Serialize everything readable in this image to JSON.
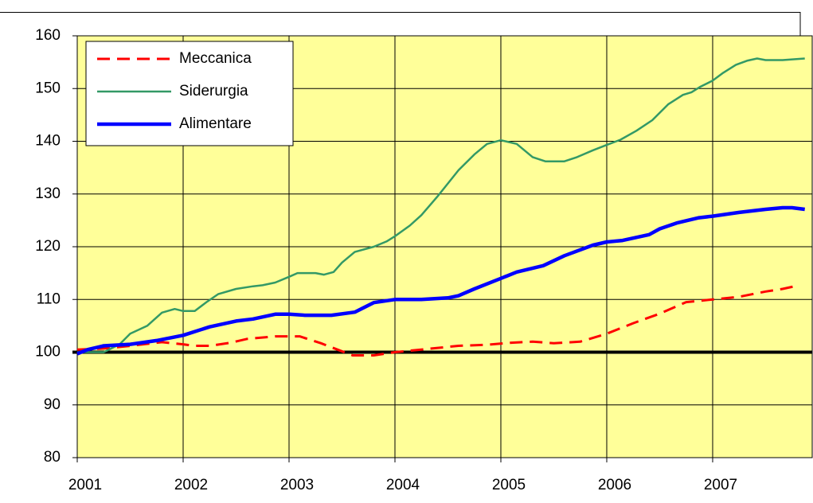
{
  "chart_data": {
    "type": "line",
    "xlim": [
      2001,
      2007.94
    ],
    "xticks": [
      2001,
      2002,
      2003,
      2004,
      2005,
      2006,
      2007
    ],
    "ylim": [
      80,
      160
    ],
    "yticks": [
      80,
      90,
      100,
      110,
      120,
      130,
      140,
      150,
      160
    ],
    "grid": true,
    "reference_line": 100,
    "legend": "upper left",
    "background": "#ffff99",
    "series": [
      {
        "name": "Meccanica",
        "color": "#ff0000",
        "style": "dashed",
        "x": [
          2001.0,
          2001.25,
          2001.5,
          2001.8,
          2002.0,
          2002.1,
          2002.25,
          2002.45,
          2002.6,
          2002.87,
          2003.1,
          2003.3,
          2003.6,
          2003.8,
          2004.0,
          2004.25,
          2004.6,
          2004.87,
          2005.1,
          2005.3,
          2005.5,
          2005.75,
          2006.0,
          2006.25,
          2006.5,
          2006.75,
          2007.0,
          2007.25,
          2007.5,
          2007.66,
          2007.8
        ],
        "values": [
          100.5,
          100.7,
          101.2,
          101.9,
          101.5,
          101.2,
          101.2,
          101.8,
          102.5,
          103,
          103,
          101.7,
          99.4,
          99.4,
          100,
          100.5,
          101.2,
          101.4,
          101.8,
          102,
          101.7,
          102,
          103.5,
          105.5,
          107.3,
          109.5,
          110,
          110.5,
          111.5,
          112,
          112.6
        ]
      },
      {
        "name": "Siderurgia",
        "color": "#339966",
        "style": "solid",
        "x": [
          2001.0,
          2001.25,
          2001.4,
          2001.5,
          2001.66,
          2001.8,
          2001.92,
          2002.0,
          2002.11,
          2002.22,
          2002.33,
          2002.5,
          2002.66,
          2002.75,
          2002.87,
          2003.0,
          2003.08,
          2003.25,
          2003.33,
          2003.42,
          2003.5,
          2003.62,
          2003.8,
          2003.92,
          2004.0,
          2004.14,
          2004.25,
          2004.4,
          2004.6,
          2004.75,
          2004.87,
          2005.0,
          2005.15,
          2005.3,
          2005.42,
          2005.6,
          2005.72,
          2005.87,
          2006.0,
          2006.13,
          2006.28,
          2006.43,
          2006.58,
          2006.72,
          2006.8,
          2006.88,
          2007.0,
          2007.1,
          2007.22,
          2007.33,
          2007.42,
          2007.5,
          2007.66,
          2007.87
        ],
        "values": [
          100,
          100,
          101.5,
          103.5,
          105,
          107.5,
          108.2,
          107.8,
          107.8,
          109.5,
          111,
          112,
          112.5,
          112.7,
          113.2,
          114.3,
          115,
          115,
          114.7,
          115.2,
          117,
          119,
          120,
          121,
          122,
          124,
          126,
          129.5,
          134.5,
          137.5,
          139.5,
          140.2,
          139.5,
          137,
          136.2,
          136.2,
          137,
          138.3,
          139.3,
          140.3,
          142,
          144,
          147,
          148.8,
          149.3,
          150.3,
          151.5,
          153,
          154.5,
          155.3,
          155.7,
          155.4,
          155.4,
          155.7
        ]
      },
      {
        "name": "Alimentare",
        "color": "#0000ff",
        "style": "thick",
        "x": [
          2001.0,
          2001.1,
          2001.25,
          2001.5,
          2001.75,
          2002.0,
          2002.25,
          2002.5,
          2002.66,
          2002.87,
          2003.0,
          2003.15,
          2003.4,
          2003.62,
          2003.8,
          2004.0,
          2004.25,
          2004.5,
          2004.6,
          2004.75,
          2005.0,
          2005.15,
          2005.4,
          2005.6,
          2005.87,
          2006.0,
          2006.15,
          2006.4,
          2006.5,
          2006.66,
          2006.87,
          2007.0,
          2007.25,
          2007.5,
          2007.66,
          2007.75,
          2007.87
        ],
        "values": [
          99.7,
          100.5,
          101.2,
          101.5,
          102.2,
          103.2,
          104.8,
          105.9,
          106.3,
          107.2,
          107.2,
          107,
          107,
          107.6,
          109.4,
          110,
          110,
          110.3,
          110.7,
          112,
          114,
          115.2,
          116.4,
          118.3,
          120.3,
          120.9,
          121.2,
          122.3,
          123.4,
          124.5,
          125.5,
          125.8,
          126.5,
          127.1,
          127.4,
          127.4,
          127.1
        ]
      }
    ]
  }
}
